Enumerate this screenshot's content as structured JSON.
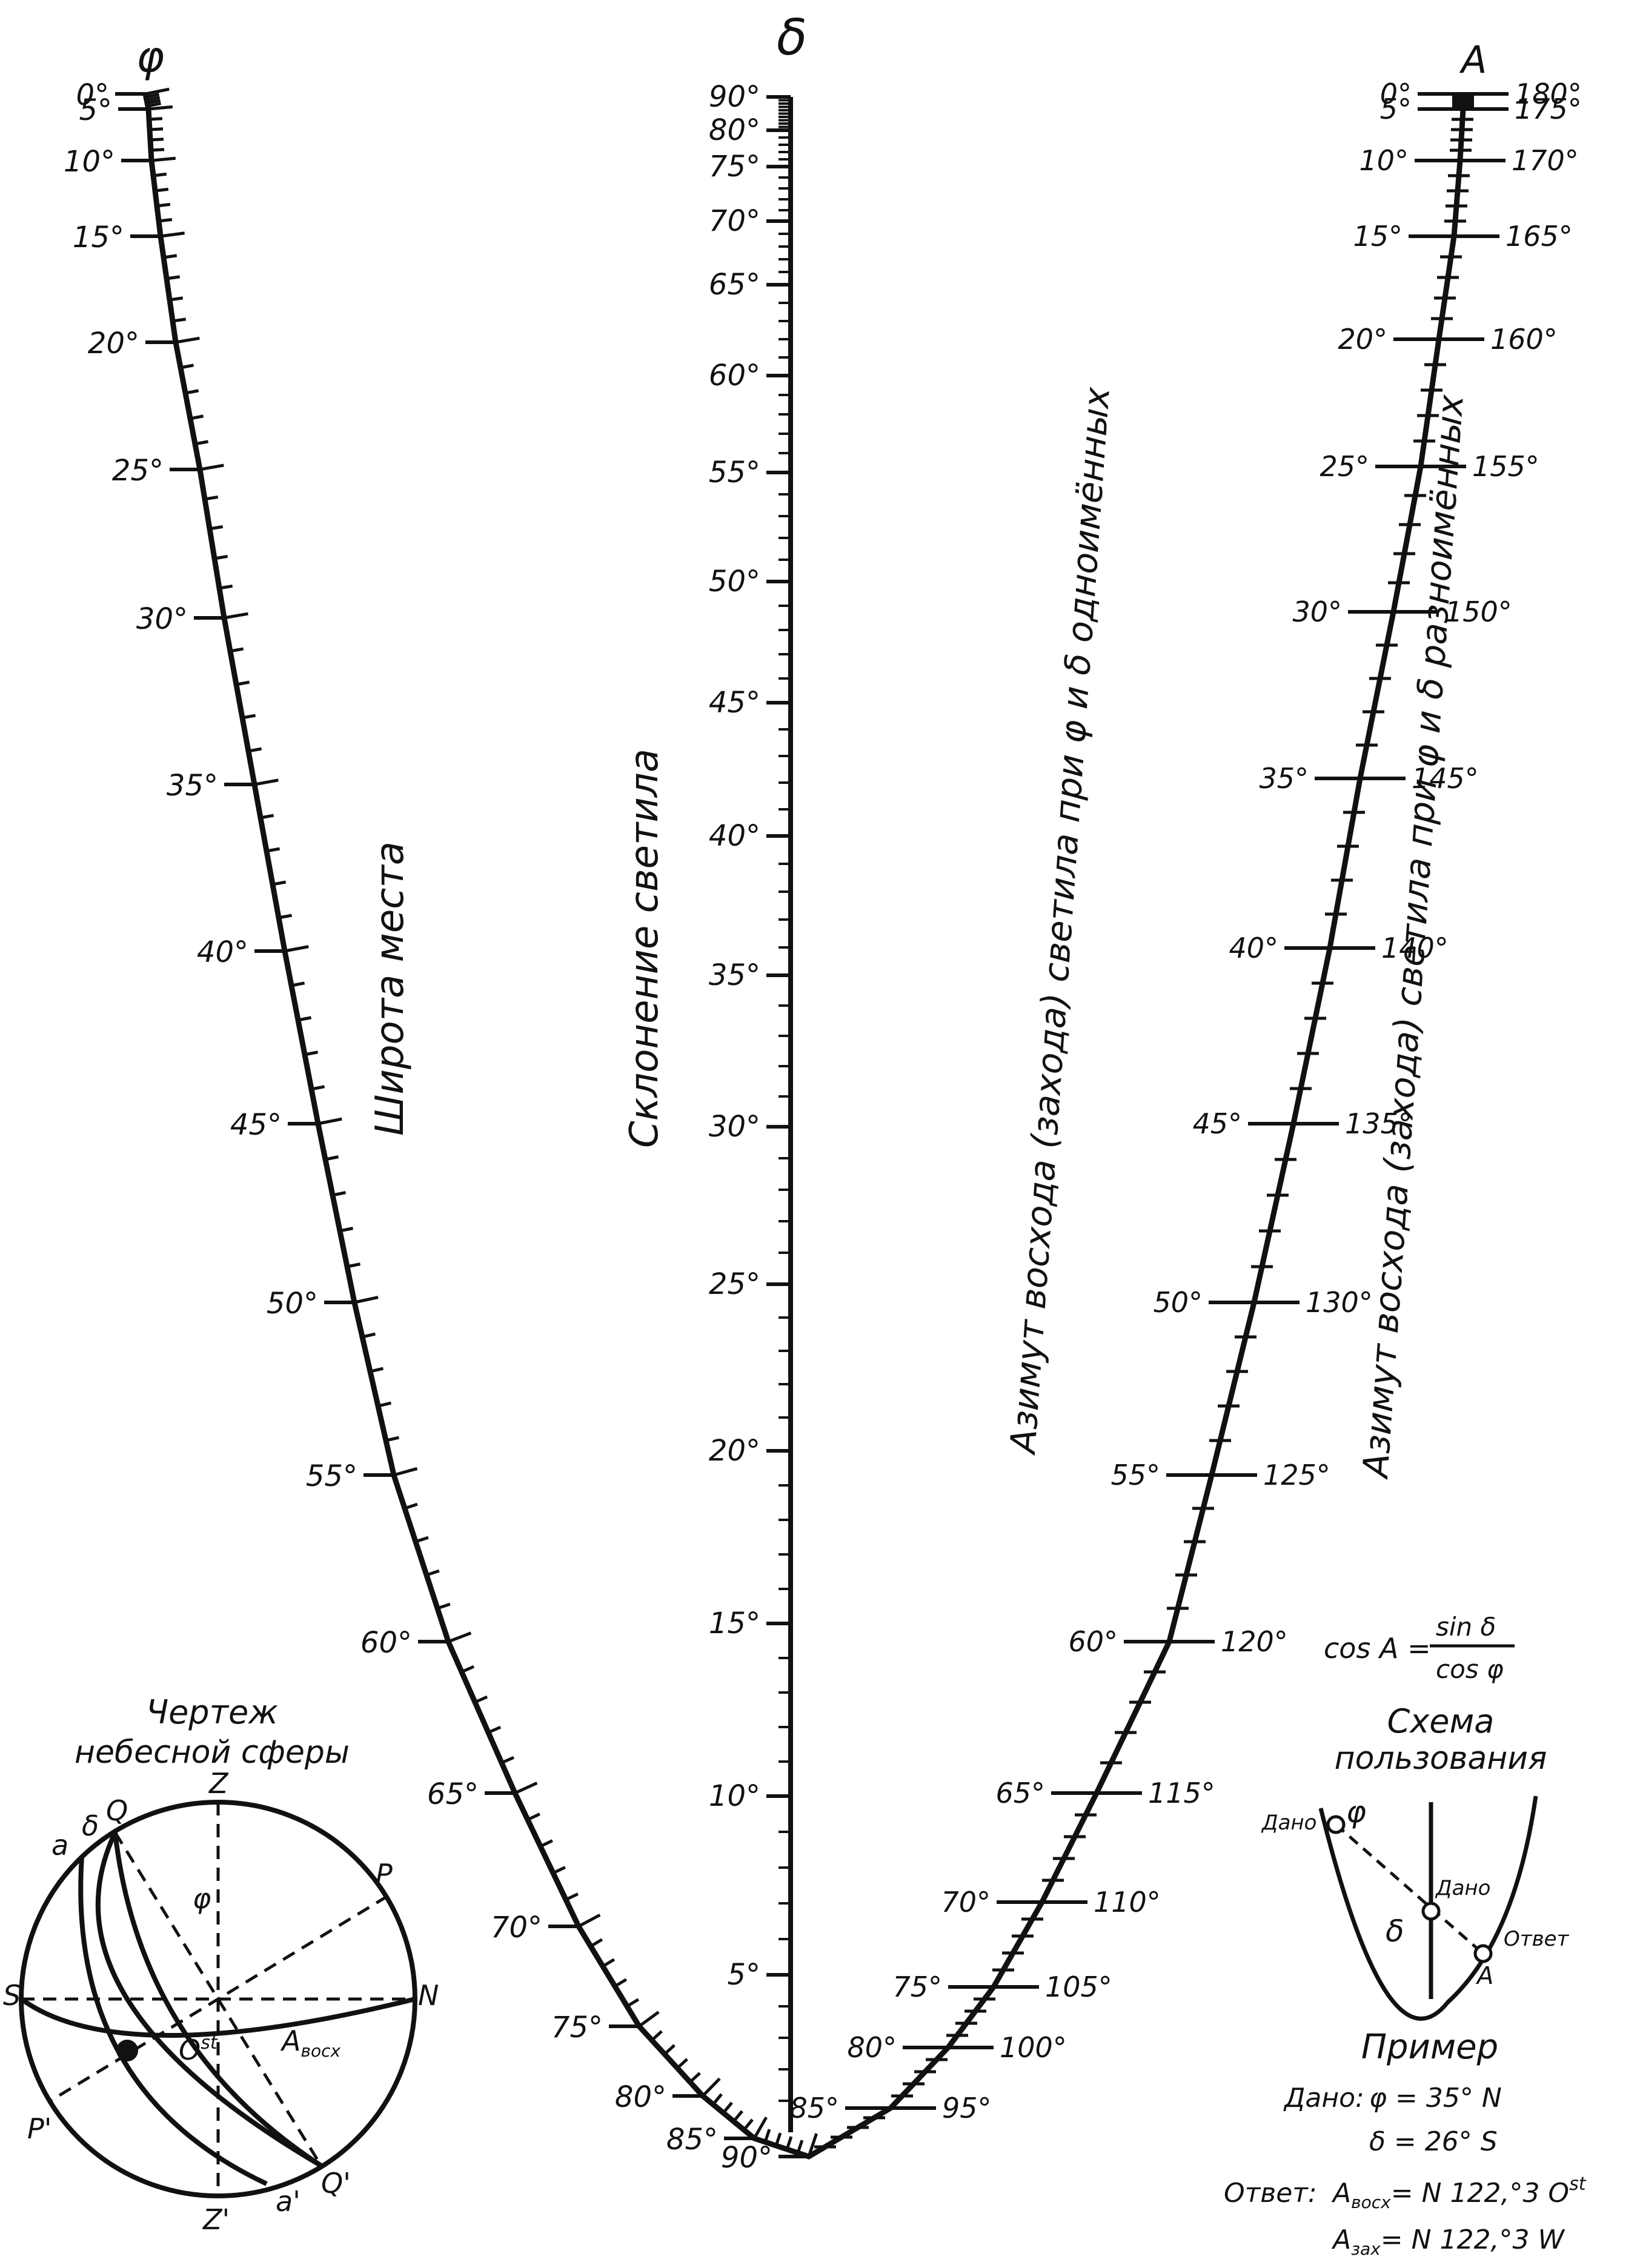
{
  "phi_scale": {
    "symbol": "φ",
    "title": "Широта места",
    "labels": [
      "0°",
      "5°",
      "10°",
      "15°",
      "20°",
      "25°",
      "30°",
      "35°",
      "40°",
      "45°",
      "50°",
      "55°",
      "60°",
      "65°",
      "70°",
      "75°",
      "80°",
      "85°",
      "90°"
    ]
  },
  "delta_scale": {
    "symbol": "δ",
    "title": "Склонение светила",
    "labels": [
      "90°",
      "80°",
      "75°",
      "70°",
      "65°",
      "60°",
      "55°",
      "50°",
      "45°",
      "40°",
      "35°",
      "30°",
      "25°",
      "20°",
      "15°",
      "10°",
      "5°"
    ]
  },
  "azimuth_scale": {
    "symbol": "A",
    "title_same": "Азимут восхода (захода) светила при φ и δ одноимённых",
    "title_opposite": "Азимут восхода (захода) светила при φ и δ разноимённых",
    "left_labels": [
      "0°",
      "5°",
      "10°",
      "15°",
      "20°",
      "25°",
      "30°",
      "35°",
      "40°",
      "45°",
      "50°",
      "55°",
      "60°",
      "65°",
      "70°",
      "75°",
      "80°",
      "85°"
    ],
    "right_labels": [
      "180°",
      "175°",
      "170°",
      "165°",
      "160°",
      "155°",
      "150°",
      "145°",
      "140°",
      "135°",
      "130°",
      "125°",
      "120°",
      "115°",
      "110°",
      "105°",
      "100°",
      "95°"
    ]
  },
  "formula": {
    "lhs": "cos A =",
    "num": "sin δ",
    "den": "cos φ"
  },
  "usage_scheme": {
    "title_1": "Схема",
    "title_2": "пользования",
    "given_phi": "Дано",
    "phi": "φ",
    "given_delta": "Дано",
    "delta": "δ",
    "answer": "Ответ",
    "a": "A"
  },
  "sphere": {
    "title_1": "Чертеж",
    "title_2": "небесной сферы",
    "labels": {
      "z": "Z",
      "z_prime": "Z'",
      "p": "P",
      "p_prime": "P'",
      "q": "Q",
      "q_prime": "Q'",
      "s": "S",
      "n": "N",
      "a": "a",
      "a_prime": "a'",
      "delta": "δ",
      "phi": "φ",
      "ost": "O",
      "ost_sup": "st",
      "azimuth": "A",
      "azimuth_sub": "восх"
    }
  },
  "example": {
    "title": "Пример",
    "given_label": "Дано:",
    "phi_value": "φ = 35° N",
    "delta_value": "δ = 26° S",
    "answer_label": "Ответ:",
    "answer1_a": "A",
    "answer1_sub": "восх",
    "answer1_val": "= N 122,°3 O",
    "answer1_sup": "st",
    "answer2_a": "A",
    "answer2_sub": "зах",
    "answer2_val": "= N 122,°3 W"
  }
}
